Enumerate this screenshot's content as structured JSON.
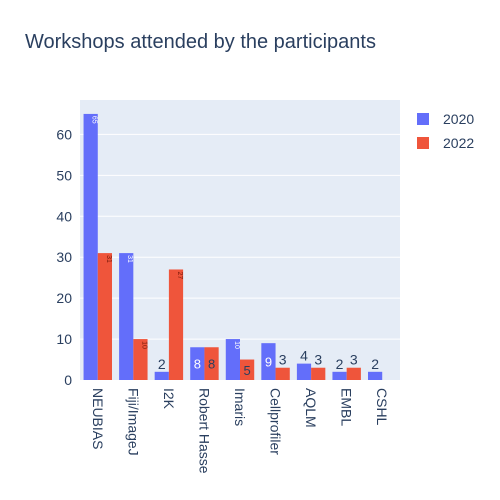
{
  "chart_data": {
    "type": "bar",
    "title": "Workshops attended by the participants",
    "xlabel": "",
    "ylabel": "",
    "categories": [
      "NEUBIAS",
      "Fiji/ImageJ",
      "I2K",
      "Robert Hasse",
      "Imaris",
      "Cellprofiler",
      "AQLM",
      "EMBL",
      "CSHL"
    ],
    "series": [
      {
        "name": "2020",
        "color": "#636efa",
        "values": [
          65,
          31,
          2,
          8,
          10,
          9,
          4,
          2,
          2
        ]
      },
      {
        "name": "2022",
        "color": "#ef553b",
        "values": [
          31,
          10,
          27,
          8,
          5,
          3,
          3,
          3,
          null
        ]
      }
    ],
    "ylim": [
      0,
      68.4
    ],
    "yticks": [
      0,
      10,
      20,
      30,
      40,
      50,
      60
    ],
    "grid": true,
    "legend_position": "top-right",
    "plot_bg": "#e5ecf6"
  }
}
